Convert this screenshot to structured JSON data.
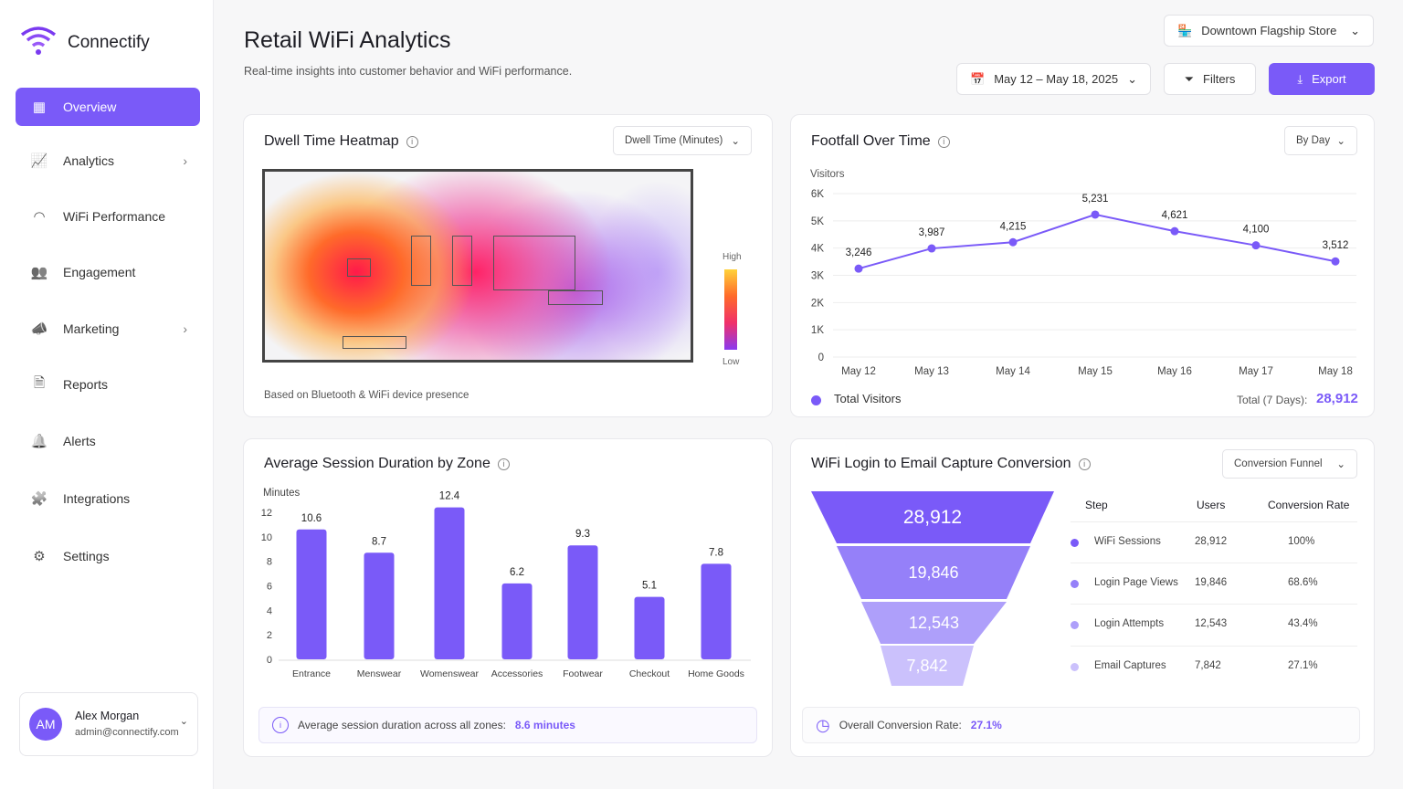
{
  "brand": {
    "name": "Connectify",
    "accent": "#7a5af8"
  },
  "sidebar": {
    "items": [
      {
        "label": "Overview",
        "icon": "grid-icon",
        "active": true
      },
      {
        "label": "Analytics",
        "icon": "chart-icon",
        "chevron": true
      },
      {
        "label": "WiFi Performance",
        "icon": "wifi-icon"
      },
      {
        "label": "Engagement",
        "icon": "users-icon"
      },
      {
        "label": "Marketing",
        "icon": "megaphone-icon",
        "chevron": true
      },
      {
        "label": "Reports",
        "icon": "file-icon"
      },
      {
        "label": "Alerts",
        "icon": "bell-icon"
      },
      {
        "label": "Integrations",
        "icon": "puzzle-icon"
      },
      {
        "label": "Settings",
        "icon": "gear-icon"
      }
    ],
    "user": {
      "initials": "AM",
      "name": "Alex Morgan",
      "email": "admin@connectify.com"
    }
  },
  "header": {
    "title": "Retail WiFi Analytics",
    "subtitle": "Real-time insights into customer behavior and WiFi performance.",
    "store": "Downtown Flagship Store",
    "date_range": "May 12 – May 18, 2025",
    "filters": "Filters",
    "export": "Export"
  },
  "heatmap": {
    "title": "Dwell Time Heatmap",
    "metric": "Dwell Time (Minutes)",
    "high": "High",
    "low": "Low",
    "footnote": "Based on Bluetooth & WiFi device presence"
  },
  "footfall": {
    "title": "Footfall Over Time",
    "period": "By Day",
    "legend": "Total Visitors",
    "total_label": "Total (7 Days):",
    "total": "28,912"
  },
  "sessions": {
    "title": "Average Session Duration by Zone",
    "note": "Average session duration across all zones:",
    "note_value": "8.6 minutes"
  },
  "funnel": {
    "title": "WiFi Login to Email Capture Conversion",
    "view": "Conversion Funnel",
    "headers": [
      "Step",
      "Users",
      "Conversion Rate"
    ],
    "steps": [
      {
        "step": "WiFi Sessions",
        "users": "28,912",
        "rate": "100%",
        "color": "#7a5af8"
      },
      {
        "step": "Login Page Views",
        "users": "19,846",
        "rate": "68.6%",
        "color": "#9580f9"
      },
      {
        "step": "Login Attempts",
        "users": "12,543",
        "rate": "43.4%",
        "color": "#ae9ffa"
      },
      {
        "step": "Email Captures",
        "users": "7,842",
        "rate": "27.1%",
        "color": "#cbc1fc"
      }
    ],
    "overall_label": "Overall Conversion Rate:",
    "overall": "27.1%"
  },
  "chart_data": [
    {
      "type": "line",
      "ylabel": "Visitors",
      "categories": [
        "May 12",
        "May 13",
        "May 14",
        "May 15",
        "May 16",
        "May 17",
        "May 18"
      ],
      "series": [
        {
          "name": "Total Visitors",
          "values": [
            3246,
            3987,
            4215,
            5231,
            4621,
            4100,
            3512
          ]
        }
      ],
      "data_labels": [
        "3,246",
        "3,987",
        "4,215",
        "5,231",
        "4,621",
        "4,100",
        "3,512"
      ],
      "ylim": [
        0,
        6000
      ],
      "yticks": [
        "0",
        "1K",
        "2K",
        "3K",
        "4K",
        "5K",
        "6K"
      ],
      "grid": true
    },
    {
      "type": "bar",
      "ylabel": "Minutes",
      "categories": [
        "Entrance",
        "Menswear",
        "Womenswear",
        "Accessories",
        "Footwear",
        "Checkout",
        "Home Goods"
      ],
      "values": [
        10.6,
        8.7,
        12.4,
        6.2,
        9.3,
        5.1,
        7.8
      ],
      "ylim": [
        0,
        12
      ],
      "yticks": [
        "0",
        "2",
        "4",
        "6",
        "8",
        "10",
        "12"
      ]
    }
  ]
}
